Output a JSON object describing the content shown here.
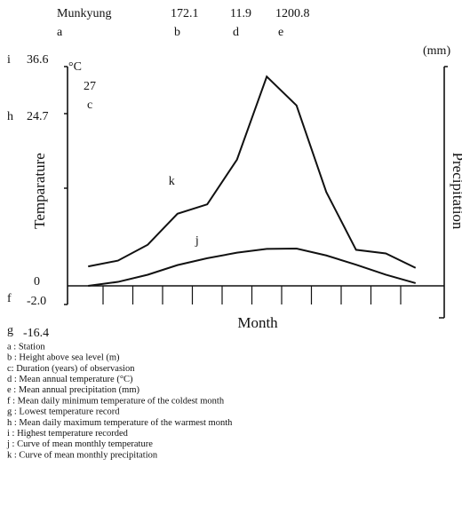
{
  "chart_data": {
    "type": "line",
    "station": "Munkyung",
    "height": "172.1",
    "mean_temperature": "11.9",
    "annual_precipitation": "1200.8",
    "letters": {
      "a": "a",
      "b": "b",
      "c": "c",
      "d": "d",
      "e": "e",
      "f": "f",
      "g": "g",
      "h": "h",
      "i": "i",
      "j": "j",
      "k": "k"
    },
    "highest_temperature": "36.6",
    "temperature_unit": "°C",
    "years": "27",
    "max_warmest": "24.7",
    "zero": "0",
    "min_coldest": "-2.0",
    "lowest_temperature": "-16.4",
    "precipitation_unit": "(mm)",
    "ylabel": "Temparature",
    "y2label": "Precipitation",
    "xlabel": "Month",
    "categories": [
      null,
      null,
      null,
      null,
      null,
      null,
      null,
      null,
      null,
      null,
      null,
      null
    ],
    "ylim": [
      0,
      160
    ],
    "y2lim": [
      0,
      305
    ],
    "series": [
      {
        "name": "k",
        "color": "#111",
        "axis": "y2",
        "values": [
          22,
          30,
          52,
          95,
          108,
          170,
          285,
          245,
          125,
          45,
          40,
          20
        ]
      },
      {
        "name": "j",
        "color": "#111",
        "values": [
          -2.6,
          0.3,
          5.5,
          12.5,
          17.5,
          21.5,
          24.3,
          24.5,
          19.5,
          12.8,
          5.5,
          -0.6
        ]
      }
    ],
    "legend": [
      "a : Station",
      "b : Height above sea level (m)",
      "c: Duration (years) of observasion",
      "d : Mean annual temperature (°C)",
      "e : Mean annual precipitation (mm)",
      "f : Mean daily minimum temperature of the coldest month",
      "g : Lowest temperature record",
      "h : Mean daily maximum temperature of the warmest month",
      "i : Highest temperature recorded",
      "j : Curve of mean monthly temperature",
      "k : Curve of mean monthly precipitation"
    ]
  }
}
